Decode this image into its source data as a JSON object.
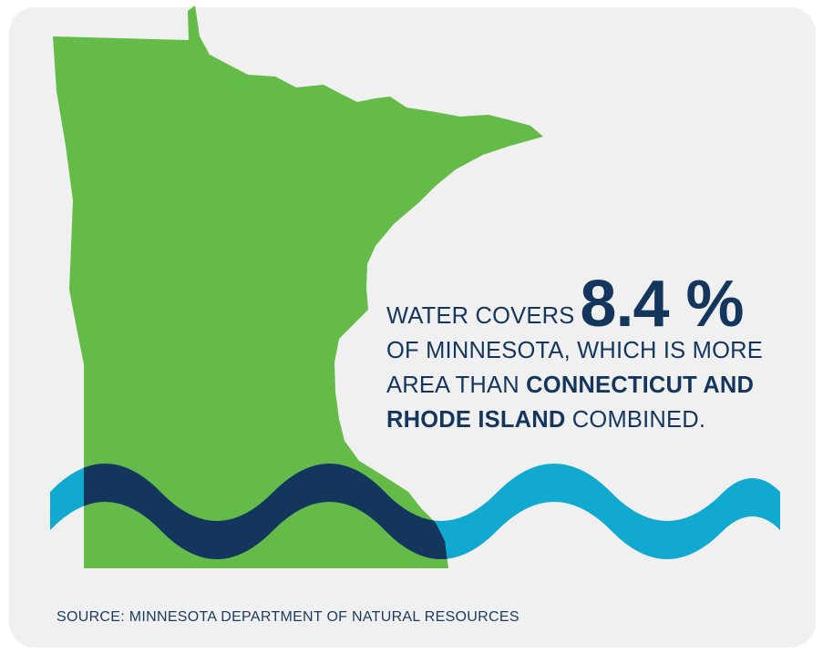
{
  "stat": {
    "prefix": "WATER COVERS",
    "value": "8.4 %",
    "line2": "OF MINNESOTA, WHICH IS MORE",
    "line3_pre": "AREA THAN",
    "line3_bold": "CONNECTICUT AND",
    "line4_bold": "RHODE ISLAND",
    "line4_post": "COMBINED."
  },
  "source": "SOURCE: MINNESOTA DEPARTMENT OF NATURAL RESOURCES",
  "colors": {
    "state": "#64bb47",
    "wave_light": "#12a9d0",
    "wave_dark": "#14365c",
    "text": "#14365c",
    "card": "#f0f0f1"
  },
  "icons": {
    "state": "minnesota-map-icon",
    "water": "water-wave-icon"
  }
}
